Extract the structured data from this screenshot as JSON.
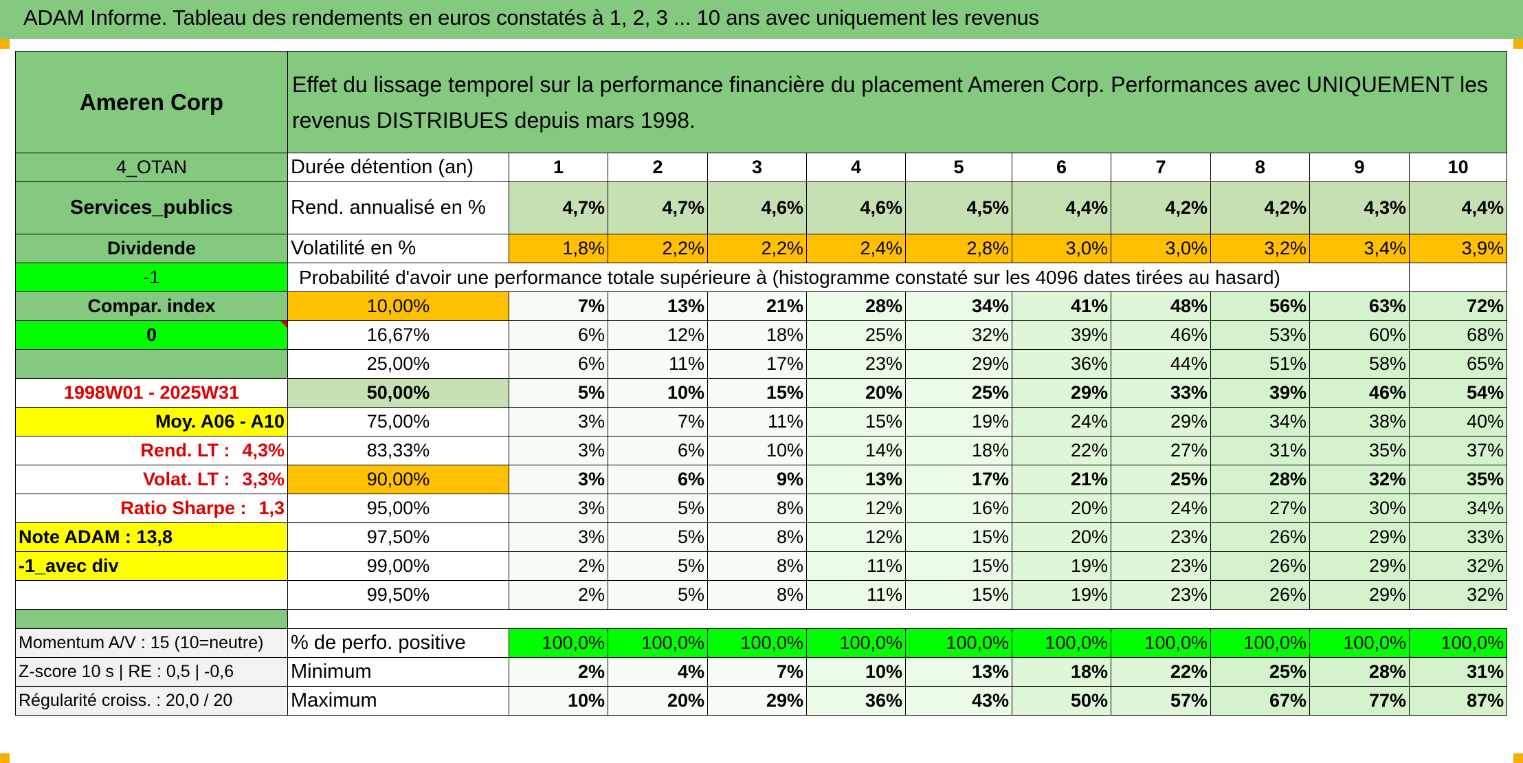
{
  "title": "ADAM Informe. Tableau des rendements en euros constatés à 1, 2, 3 ... 10 ans avec uniquement les revenus",
  "header": {
    "company": "Ameren Corp",
    "description_line1": "Effet du lissage temporel sur la performance financière du placement Ameren Corp. Performances avec UNIQUEMENT les",
    "description_line2": "revenus DISTRIBUES depuis mars 1998."
  },
  "left": {
    "otan": "4_OTAN",
    "sector": "Services_publics",
    "dividend": "Dividende",
    "minus_one": "-1",
    "compar_index": "Compar. index",
    "zero": "0",
    "period": "1998W01 - 2025W31",
    "moy": "Moy. A06 - A10",
    "rend_lt_label": "Rend. LT :",
    "rend_lt_value": "4,3%",
    "volat_lt_label": "Volat. LT :",
    "volat_lt_value": "3,3%",
    "sharpe_label": "Ratio Sharpe :",
    "sharpe_value": "1,3",
    "note": "Note ADAM : 13,8",
    "avec_div": "-1_avec div",
    "momentum": "Momentum A/V : 15 (10=neutre)",
    "zscore": "Z-score 10 s | RE : 0,5 | -0,6",
    "regularite": "Régularité croiss. : 20,0 / 20"
  },
  "rows": {
    "duree_label": "Durée détention (an)",
    "years": [
      "1",
      "2",
      "3",
      "4",
      "5",
      "6",
      "7",
      "8",
      "9",
      "10"
    ],
    "rend_label": "Rend. annualisé en %",
    "rend": [
      "4,7%",
      "4,7%",
      "4,6%",
      "4,6%",
      "4,5%",
      "4,4%",
      "4,2%",
      "4,2%",
      "4,3%",
      "4,4%"
    ],
    "vol_label": "Volatilité en %",
    "vol": [
      "1,8%",
      "2,2%",
      "2,2%",
      "2,4%",
      "2,8%",
      "3,0%",
      "3,0%",
      "3,2%",
      "3,4%",
      "3,9%"
    ],
    "prob_label": "Probabilité d'avoir une performance totale supérieure à (histogramme constaté sur les 4096 dates tirées au hasard)",
    "pct": [
      {
        "label": "10,00%",
        "values": [
          "7%",
          "13%",
          "21%",
          "28%",
          "34%",
          "41%",
          "48%",
          "56%",
          "63%",
          "72%"
        ]
      },
      {
        "label": "16,67%",
        "values": [
          "6%",
          "12%",
          "18%",
          "25%",
          "32%",
          "39%",
          "46%",
          "53%",
          "60%",
          "68%"
        ]
      },
      {
        "label": "25,00%",
        "values": [
          "6%",
          "11%",
          "17%",
          "23%",
          "29%",
          "36%",
          "44%",
          "51%",
          "58%",
          "65%"
        ]
      },
      {
        "label": "50,00%",
        "values": [
          "5%",
          "10%",
          "15%",
          "20%",
          "25%",
          "29%",
          "33%",
          "39%",
          "46%",
          "54%"
        ]
      },
      {
        "label": "75,00%",
        "values": [
          "3%",
          "7%",
          "11%",
          "15%",
          "19%",
          "24%",
          "29%",
          "34%",
          "38%",
          "40%"
        ]
      },
      {
        "label": "83,33%",
        "values": [
          "3%",
          "6%",
          "10%",
          "14%",
          "18%",
          "22%",
          "27%",
          "31%",
          "35%",
          "37%"
        ]
      },
      {
        "label": "90,00%",
        "values": [
          "3%",
          "6%",
          "9%",
          "13%",
          "17%",
          "21%",
          "25%",
          "28%",
          "32%",
          "35%"
        ]
      },
      {
        "label": "95,00%",
        "values": [
          "3%",
          "5%",
          "8%",
          "12%",
          "16%",
          "20%",
          "24%",
          "27%",
          "30%",
          "34%"
        ]
      },
      {
        "label": "97,50%",
        "values": [
          "3%",
          "5%",
          "8%",
          "12%",
          "15%",
          "20%",
          "23%",
          "26%",
          "29%",
          "33%"
        ]
      },
      {
        "label": "99,00%",
        "values": [
          "2%",
          "5%",
          "8%",
          "11%",
          "15%",
          "19%",
          "23%",
          "26%",
          "29%",
          "32%"
        ]
      },
      {
        "label": "99,50%",
        "values": [
          "2%",
          "5%",
          "8%",
          "11%",
          "15%",
          "19%",
          "23%",
          "26%",
          "29%",
          "32%"
        ]
      }
    ],
    "positive_label": "% de perfo. positive",
    "positive": [
      "100,0%",
      "100,0%",
      "100,0%",
      "100,0%",
      "100,0%",
      "100,0%",
      "100,0%",
      "100,0%",
      "100,0%",
      "100,0%"
    ],
    "min_label": "Minimum",
    "min": [
      "2%",
      "4%",
      "7%",
      "10%",
      "13%",
      "18%",
      "22%",
      "25%",
      "28%",
      "31%"
    ],
    "max_label": "Maximum",
    "max": [
      "10%",
      "20%",
      "29%",
      "36%",
      "43%",
      "50%",
      "57%",
      "67%",
      "77%",
      "87%"
    ]
  },
  "colors": {
    "header_green": "#84c97f",
    "light_green": "#c6e0b4",
    "orange": "#ffc000",
    "lime": "#00ff00",
    "yellow": "#ffff00",
    "red_text": "#e00000"
  }
}
